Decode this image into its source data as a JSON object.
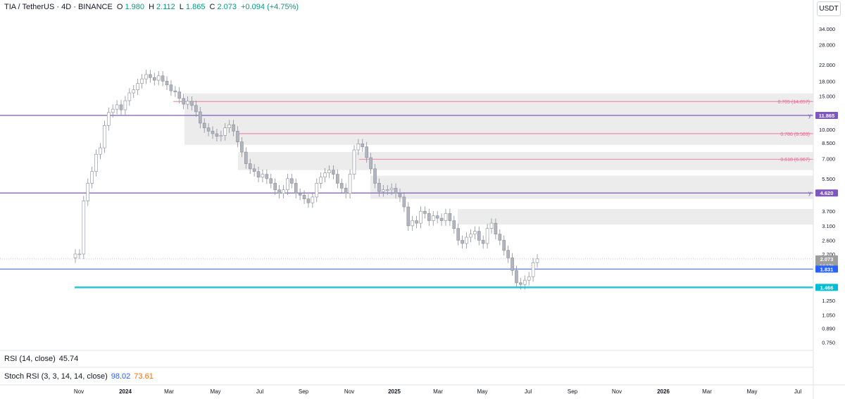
{
  "header": {
    "symbol": "TIA / TetherUS · 4D · BINANCE",
    "open_label": "O",
    "open": "1.980",
    "high_label": "H",
    "high": "2.112",
    "low_label": "L",
    "low": "1.865",
    "close_label": "C",
    "close": "2.073",
    "change": "+0.094 (+4.75%)"
  },
  "currency_button": "USDT",
  "colors": {
    "candle": "#b2b5be",
    "horizontal_line": "#7e57c2",
    "support_line": "#26c6da",
    "price_line": "#5b7cfa",
    "fib_line": "#f06292",
    "zone": "#ececec"
  },
  "chart_data": {
    "type": "candlestick",
    "x_axis_labels": [
      "Nov",
      "2024",
      "Mar",
      "May",
      "Jul",
      "Sep",
      "Nov",
      "2025",
      "Mar",
      "May",
      "Jul",
      "Sep",
      "Nov",
      "2026",
      "Mar",
      "May",
      "Jul"
    ],
    "y_scale": "log",
    "y_ticks": [
      "34.000",
      "28.000",
      "22.000",
      "18.000",
      "15.000",
      "10.000",
      "8.500",
      "7.000",
      "5.500",
      "3.700",
      "3.100",
      "2.600",
      "2.200",
      "1.250",
      "1.050",
      "0.890",
      "0.750"
    ],
    "price_labels": [
      {
        "value": 11.865,
        "text": "11.865",
        "prefix": "y",
        "color": "#7e57c2"
      },
      {
        "value": 4.62,
        "text": "4.620",
        "prefix": "y",
        "color": "#7e57c2"
      },
      {
        "value": 2.073,
        "text": "2.073",
        "sub": "1d 12h",
        "color": "#9e9e9e"
      },
      {
        "value": 1.831,
        "text": "1.831",
        "color": "#2962ff"
      },
      {
        "value": 1.466,
        "text": "1.466",
        "color": "#00bcd4"
      }
    ],
    "fib_levels": [
      {
        "value": 14.057,
        "label": "0.705 (14.057)"
      },
      {
        "value": 9.503,
        "label": "0.786 (9.503)"
      },
      {
        "value": 6.967,
        "label": "0.618 (6.967)"
      }
    ],
    "zones": [
      {
        "from": 8.3,
        "to": 15.5
      },
      {
        "from": 6.1,
        "to": 7.6
      },
      {
        "from": 4.3,
        "to": 5.7
      },
      {
        "from": 3.15,
        "to": 3.8
      }
    ],
    "close_series": [
      2.2,
      2.2,
      4.2,
      5.2,
      6.0,
      7.4,
      8.0,
      10.5,
      12.3,
      12.8,
      13.5,
      12.7,
      14.2,
      15.6,
      16.2,
      17.5,
      18.5,
      19.5,
      18.8,
      18.2,
      19.2,
      18.0,
      17.2,
      16.0,
      15.8,
      14.6,
      13.6,
      14.1,
      13.4,
      12.4,
      10.8,
      10.2,
      9.8,
      9.5,
      9.2,
      9.3,
      10.2,
      10.6,
      9.8,
      8.6,
      7.6,
      6.6,
      6.2,
      6.0,
      5.6,
      5.8,
      5.5,
      5.2,
      4.8,
      4.6,
      4.8,
      5.5,
      5.2,
      4.6,
      4.5,
      4.3,
      4.1,
      4.4,
      5.2,
      5.6,
      5.9,
      6.1,
      5.8,
      5.2,
      4.9,
      4.6,
      5.8,
      7.8,
      8.4,
      8.1,
      7.1,
      6.2,
      5.2,
      4.7,
      4.8,
      4.8,
      4.9,
      4.6,
      4.4,
      3.9,
      3.1,
      3.3,
      3.2,
      3.7,
      3.6,
      3.3,
      3.5,
      3.4,
      3.3,
      3.6,
      3.3,
      3.0,
      2.6,
      2.5,
      2.7,
      2.8,
      2.9,
      2.6,
      2.5,
      3.0,
      3.2,
      2.8,
      2.6,
      2.3,
      2.1,
      1.8,
      1.55,
      1.52,
      1.6,
      1.67,
      1.98,
      2.073
    ],
    "rsi": {
      "label": "RSI (14, close)",
      "value": "45.74"
    },
    "stoch_rsi": {
      "label": "Stoch RSI (3, 3, 14, 14, close)",
      "k": "98.02",
      "d": "73.61",
      "k_color": "#2962ff",
      "d_color": "#ff6d00"
    }
  }
}
